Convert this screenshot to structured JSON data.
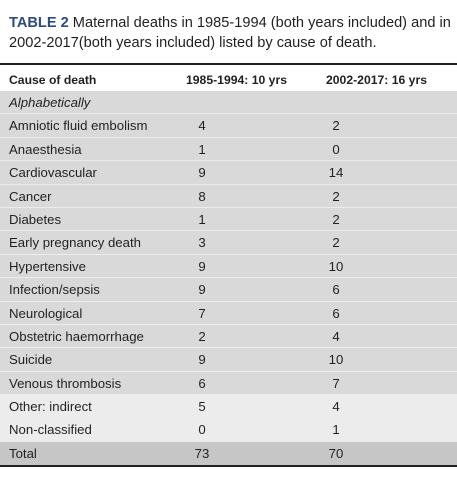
{
  "caption": {
    "label": "TABLE 2",
    "text": "Maternal deaths in 1985-1994 (both years included) and in 2002-2017(both years included) listed by cause of death."
  },
  "headers": [
    "Cause of death",
    "1985-1994: 10 yrs",
    "2002-2017: 16 yrs"
  ],
  "subheading": "Alphabetically",
  "rows": [
    {
      "cause": "Amniotic fluid embolism",
      "p1": "4",
      "p2": "2"
    },
    {
      "cause": "Anaesthesia",
      "p1": "1",
      "p2": "0"
    },
    {
      "cause": "Cardiovascular",
      "p1": "9",
      "p2": "14"
    },
    {
      "cause": "Cancer",
      "p1": "8",
      "p2": "2"
    },
    {
      "cause": "Diabetes",
      "p1": "1",
      "p2": "2"
    },
    {
      "cause": "Early pregnancy death",
      "p1": "3",
      "p2": "2"
    },
    {
      "cause": "Hypertensive",
      "p1": "9",
      "p2": "10"
    },
    {
      "cause": "Infection/sepsis",
      "p1": "9",
      "p2": "6"
    },
    {
      "cause": "Neurological",
      "p1": "7",
      "p2": "6"
    },
    {
      "cause": "Obstetric haemorrhage",
      "p1": "2",
      "p2": "4"
    },
    {
      "cause": "Suicide",
      "p1": "9",
      "p2": "10"
    },
    {
      "cause": "Venous thrombosis",
      "p1": "6",
      "p2": "7"
    },
    {
      "cause": "Other: indirect",
      "p1": "5",
      "p2": "4"
    },
    {
      "cause": "Non-classified",
      "p1": "0",
      "p2": "1"
    }
  ],
  "total": {
    "label": "Total",
    "p1": "73",
    "p2": "70"
  }
}
